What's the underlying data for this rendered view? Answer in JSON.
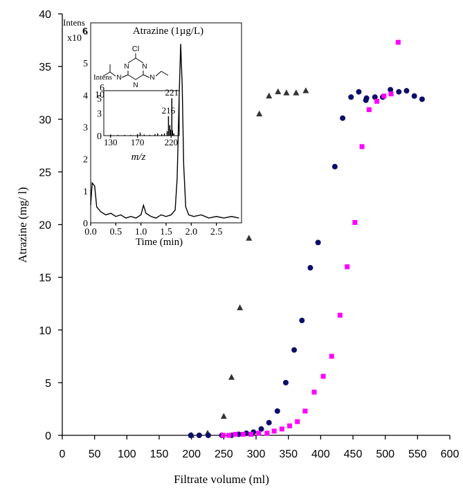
{
  "chart_data": [
    {
      "type": "scatter",
      "title": "",
      "xlabel": "Filtrate volume (ml)",
      "ylabel": "Atrazine (mg/ l)",
      "xlim": [
        0,
        600
      ],
      "ylim": [
        0,
        40
      ],
      "xticks": [
        0,
        50,
        100,
        150,
        200,
        250,
        300,
        350,
        400,
        450,
        500,
        550,
        600
      ],
      "yticks": [
        0,
        5,
        10,
        15,
        20,
        25,
        30,
        35,
        40
      ],
      "grid": false,
      "legend": "none",
      "series": [
        {
          "marker": "triangle",
          "color": "#333333",
          "points": [
            [
              200,
              0
            ],
            [
              225,
              0.2
            ],
            [
              250,
              1.8
            ],
            [
              262,
              5.5
            ],
            [
              275,
              12.1
            ],
            [
              289,
              18.7
            ],
            [
              305,
              30.5
            ],
            [
              320,
              32.2
            ],
            [
              334,
              32.6
            ],
            [
              347,
              32.5
            ],
            [
              362,
              32.5
            ],
            [
              377,
              32.7
            ]
          ]
        },
        {
          "marker": "circle",
          "color": "#0d0d6b",
          "points": [
            [
              199,
              0
            ],
            [
              212,
              0
            ],
            [
              226,
              0
            ],
            [
              247,
              0
            ],
            [
              262,
              0
            ],
            [
              273,
              0.1
            ],
            [
              285,
              0.2
            ],
            [
              296,
              0.3
            ],
            [
              308,
              0.6
            ],
            [
              320,
              1.2
            ],
            [
              333,
              2.3
            ],
            [
              346,
              5.0
            ],
            [
              359,
              8.1
            ],
            [
              371,
              10.9
            ],
            [
              384,
              15.9
            ],
            [
              396,
              18.3
            ],
            [
              422,
              25.5
            ],
            [
              434,
              30.1
            ],
            [
              447,
              32.1
            ],
            [
              459,
              32.6
            ],
            [
              470,
              31.8
            ],
            [
              471,
              32.0
            ],
            [
              484,
              32.1
            ],
            [
              496,
              32.1
            ],
            [
              508,
              32.8
            ],
            [
              521,
              32.6
            ],
            [
              533,
              32.7
            ],
            [
              545,
              32.2
            ],
            [
              557,
              31.9
            ]
          ]
        },
        {
          "marker": "square",
          "color": "#ff00ff",
          "points": [
            [
              249,
              0
            ],
            [
              258,
              0
            ],
            [
              268,
              0.1
            ],
            [
              280,
              0.1
            ],
            [
              292,
              0.1
            ],
            [
              304,
              0.2
            ],
            [
              317,
              0.2
            ],
            [
              328,
              0.4
            ],
            [
              340,
              0.6
            ],
            [
              352,
              0.9
            ],
            [
              364,
              1.3
            ],
            [
              376,
              2.3
            ],
            [
              390,
              4.1
            ],
            [
              404,
              5.6
            ],
            [
              417,
              7.5
            ],
            [
              430,
              11.4
            ],
            [
              441,
              16.0
            ],
            [
              453,
              20.2
            ],
            [
              464,
              27.4
            ],
            [
              475,
              30.9
            ],
            [
              487,
              31.7
            ],
            [
              498,
              32.2
            ],
            [
              509,
              32.4
            ],
            [
              520,
              37.3
            ]
          ]
        }
      ]
    },
    {
      "type": "line",
      "title": "Atrazine (1µg/L)",
      "xlabel": "Time (min)",
      "ylabel": "Intens",
      "ylabel_scale": "x10",
      "ylabel_exp": "6",
      "xlim": [
        0,
        3
      ],
      "ylim": [
        0,
        6
      ],
      "xticks": [
        "0.0",
        "0.5",
        "1.0",
        "1.5",
        "2.0",
        "2.5"
      ],
      "xtick_values": [
        0.0,
        0.5,
        1.0,
        1.5,
        2.0,
        2.5
      ],
      "yticks": [
        0,
        1,
        2,
        3,
        4,
        5,
        6
      ],
      "series": [
        {
          "name": "",
          "points": [
            [
              0.0,
              0.55
            ],
            [
              0.03,
              1.25
            ],
            [
              0.08,
              1.15
            ],
            [
              0.12,
              0.5
            ],
            [
              0.2,
              0.35
            ],
            [
              0.3,
              0.25
            ],
            [
              0.4,
              0.3
            ],
            [
              0.5,
              0.2
            ],
            [
              0.6,
              0.25
            ],
            [
              0.7,
              0.15
            ],
            [
              0.8,
              0.2
            ],
            [
              0.9,
              0.15
            ],
            [
              1.0,
              0.25
            ],
            [
              1.05,
              0.55
            ],
            [
              1.1,
              0.3
            ],
            [
              1.2,
              0.2
            ],
            [
              1.3,
              0.15
            ],
            [
              1.4,
              0.25
            ],
            [
              1.5,
              0.2
            ],
            [
              1.6,
              0.25
            ],
            [
              1.68,
              0.4
            ],
            [
              1.72,
              1.4
            ],
            [
              1.76,
              4.0
            ],
            [
              1.79,
              5.6
            ],
            [
              1.82,
              4.3
            ],
            [
              1.85,
              1.8
            ],
            [
              1.89,
              0.5
            ],
            [
              1.95,
              0.25
            ],
            [
              2.05,
              0.2
            ],
            [
              2.2,
              0.25
            ],
            [
              2.35,
              0.15
            ],
            [
              2.5,
              0.2
            ],
            [
              2.65,
              0.15
            ],
            [
              2.8,
              0.2
            ],
            [
              2.95,
              0.15
            ]
          ]
        }
      ],
      "spectrum": {
        "type": "bar",
        "xlabel": "m/z",
        "ylabel": "Intens",
        "ylabel_exp": "6",
        "ylabel_scale": "10",
        "xlim": [
          120,
          232
        ],
        "ylim": [
          0,
          6
        ],
        "xticks": [
          130,
          170,
          220
        ],
        "yticks": [
          0,
          3,
          5
        ],
        "peak_labels": [
          {
            "mz": 221,
            "label": "221"
          },
          {
            "mz": 216,
            "label": "216"
          }
        ],
        "peaks": [
          [
            130,
            0.15
          ],
          [
            141,
            0.1
          ],
          [
            151,
            0.1
          ],
          [
            160,
            0.1
          ],
          [
            170,
            0.2
          ],
          [
            174,
            0.4
          ],
          [
            180,
            0.15
          ],
          [
            188,
            0.1
          ],
          [
            196,
            0.2
          ],
          [
            200,
            0.3
          ],
          [
            206,
            0.2
          ],
          [
            210,
            0.3
          ],
          [
            214,
            0.6
          ],
          [
            216,
            2.6
          ],
          [
            218,
            1.4
          ],
          [
            219,
            0.8
          ],
          [
            221,
            5.0
          ],
          [
            222,
            0.7
          ],
          [
            224,
            0.3
          ]
        ]
      },
      "structure": {
        "atom_labels": [
          "Cl",
          "N",
          "N",
          "N",
          "N",
          "N"
        ]
      }
    }
  ]
}
